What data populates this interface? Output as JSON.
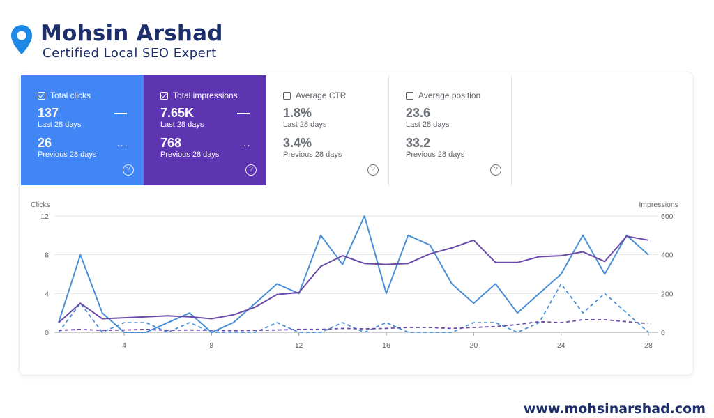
{
  "brand": {
    "name": "Mohsin Arshad",
    "subtitle": "Certified Local SEO Expert"
  },
  "website": "www.mohsinarshad.com",
  "colors": {
    "clicks": "#4285f4",
    "impressions": "#5e35b1",
    "brand": "#1c2f6b",
    "pin": "#1e88e5"
  },
  "metrics": [
    {
      "label": "Total clicks",
      "checked": true,
      "value": "137",
      "period": "Last 28 days",
      "prev_value": "26",
      "prev_period": "Previous 28 days",
      "help_icon": "?"
    },
    {
      "label": "Total impressions",
      "checked": true,
      "value": "7.65K",
      "period": "Last 28 days",
      "prev_value": "768",
      "prev_period": "Previous 28 days",
      "help_icon": "?"
    },
    {
      "label": "Average CTR",
      "checked": false,
      "value": "1.8%",
      "period": "Last 28 days",
      "prev_value": "3.4%",
      "prev_period": "Previous 28 days",
      "help_icon": "?"
    },
    {
      "label": "Average position",
      "checked": false,
      "value": "23.6",
      "period": "Last 28 days",
      "prev_value": "33.2",
      "prev_period": "Previous 28 days",
      "help_icon": "?"
    }
  ],
  "chart_data": {
    "type": "line",
    "ylabel": "Clicks",
    "y2label": "Impressions",
    "x": [
      1,
      2,
      3,
      4,
      5,
      6,
      7,
      8,
      9,
      10,
      11,
      12,
      13,
      14,
      15,
      16,
      17,
      18,
      19,
      20,
      21,
      22,
      23,
      24,
      25,
      26,
      27,
      28
    ],
    "xticks": [
      4,
      8,
      12,
      16,
      20,
      24,
      28
    ],
    "ylim": [
      0,
      12
    ],
    "yticks": [
      0,
      4,
      8,
      12
    ],
    "y2lim": [
      0,
      600
    ],
    "y2ticks": [
      0,
      200,
      400,
      600
    ],
    "grid": true,
    "series": [
      {
        "name": "Total clicks",
        "axis": "left",
        "style": "solid",
        "color": "#4a8fd6",
        "values": [
          1,
          8,
          2,
          0,
          0,
          1,
          2,
          0,
          1,
          3,
          5,
          4,
          10,
          7,
          12,
          4,
          10,
          9,
          5,
          3,
          5,
          2,
          4,
          6,
          10,
          6,
          10,
          8
        ]
      },
      {
        "name": "Total impressions",
        "axis": "right",
        "style": "solid",
        "color": "#6a4aa8",
        "values": [
          50,
          150,
          70,
          75,
          80,
          85,
          80,
          70,
          90,
          130,
          195,
          205,
          340,
          395,
          355,
          350,
          355,
          405,
          435,
          475,
          360,
          360,
          390,
          395,
          415,
          365,
          495,
          475
        ]
      },
      {
        "name": "Total clicks (previous 28 days)",
        "axis": "left",
        "style": "dashed",
        "color": "#4a8fd6",
        "values": [
          0,
          3,
          0,
          1,
          1,
          0,
          1,
          0,
          0,
          0,
          1,
          0,
          0,
          1,
          0,
          1,
          0,
          0,
          0,
          1,
          1,
          0,
          1,
          5,
          2,
          4,
          2,
          0
        ]
      },
      {
        "name": "Total impressions (previous 28 days)",
        "axis": "right",
        "style": "dashed",
        "color": "#6a4aa8",
        "values": [
          10,
          15,
          10,
          12,
          15,
          10,
          12,
          10,
          8,
          10,
          12,
          15,
          15,
          20,
          18,
          20,
          25,
          25,
          20,
          25,
          30,
          40,
          55,
          50,
          65,
          65,
          55,
          45
        ]
      }
    ]
  }
}
